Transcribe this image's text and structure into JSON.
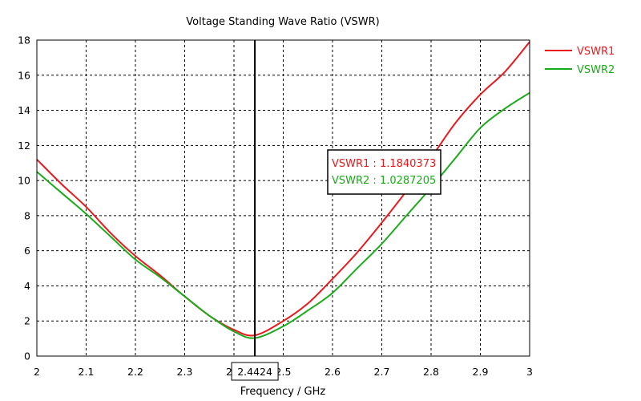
{
  "chart_data": {
    "type": "line",
    "title": "Voltage Standing Wave Ratio (VSWR)",
    "xlabel": "Frequency / GHz",
    "ylabel": "",
    "xlim": [
      2,
      3
    ],
    "ylim": [
      0,
      18
    ],
    "grid": true,
    "legend_position": "right",
    "x_ticks": [
      "2",
      "2.1",
      "2.2",
      "2.3",
      "2.4",
      "2.5",
      "2.6",
      "2.7",
      "2.8",
      "2.9",
      "3"
    ],
    "y_ticks": [
      "0",
      "2",
      "4",
      "6",
      "8",
      "10",
      "12",
      "14",
      "16",
      "18"
    ],
    "series": [
      {
        "name": "VSWR1",
        "color": "#e8191d",
        "points": [
          [
            2.0,
            11.2
          ],
          [
            2.05,
            9.8
          ],
          [
            2.1,
            8.5
          ],
          [
            2.15,
            7.0
          ],
          [
            2.2,
            5.7
          ],
          [
            2.25,
            4.6
          ],
          [
            2.3,
            3.4
          ],
          [
            2.35,
            2.3
          ],
          [
            2.4,
            1.5
          ],
          [
            2.4424,
            1.184
          ],
          [
            2.5,
            2.0
          ],
          [
            2.55,
            3.0
          ],
          [
            2.6,
            4.4
          ],
          [
            2.65,
            5.9
          ],
          [
            2.7,
            7.6
          ],
          [
            2.75,
            9.4
          ],
          [
            2.8,
            11.3
          ],
          [
            2.85,
            13.3
          ],
          [
            2.9,
            14.9
          ],
          [
            2.95,
            16.2
          ],
          [
            3.0,
            17.9
          ]
        ]
      },
      {
        "name": "VSWR2",
        "color": "#1aaa1a",
        "points": [
          [
            2.0,
            10.5
          ],
          [
            2.05,
            9.3
          ],
          [
            2.1,
            8.1
          ],
          [
            2.15,
            6.8
          ],
          [
            2.2,
            5.5
          ],
          [
            2.25,
            4.5
          ],
          [
            2.3,
            3.4
          ],
          [
            2.35,
            2.3
          ],
          [
            2.4,
            1.4
          ],
          [
            2.4424,
            1.029
          ],
          [
            2.5,
            1.7
          ],
          [
            2.55,
            2.6
          ],
          [
            2.6,
            3.6
          ],
          [
            2.65,
            5.0
          ],
          [
            2.7,
            6.4
          ],
          [
            2.75,
            8.0
          ],
          [
            2.8,
            9.6
          ],
          [
            2.85,
            11.3
          ],
          [
            2.9,
            13.0
          ],
          [
            2.95,
            14.1
          ],
          [
            3.0,
            15.0
          ]
        ]
      }
    ],
    "marker": {
      "x": 2.4424,
      "x_label": "2.4424",
      "readouts": [
        {
          "text": "VSWR1 : 1.1840373",
          "color": "#e8191d"
        },
        {
          "text": "VSWR2 : 1.0287205",
          "color": "#1aaa1a"
        }
      ]
    }
  }
}
